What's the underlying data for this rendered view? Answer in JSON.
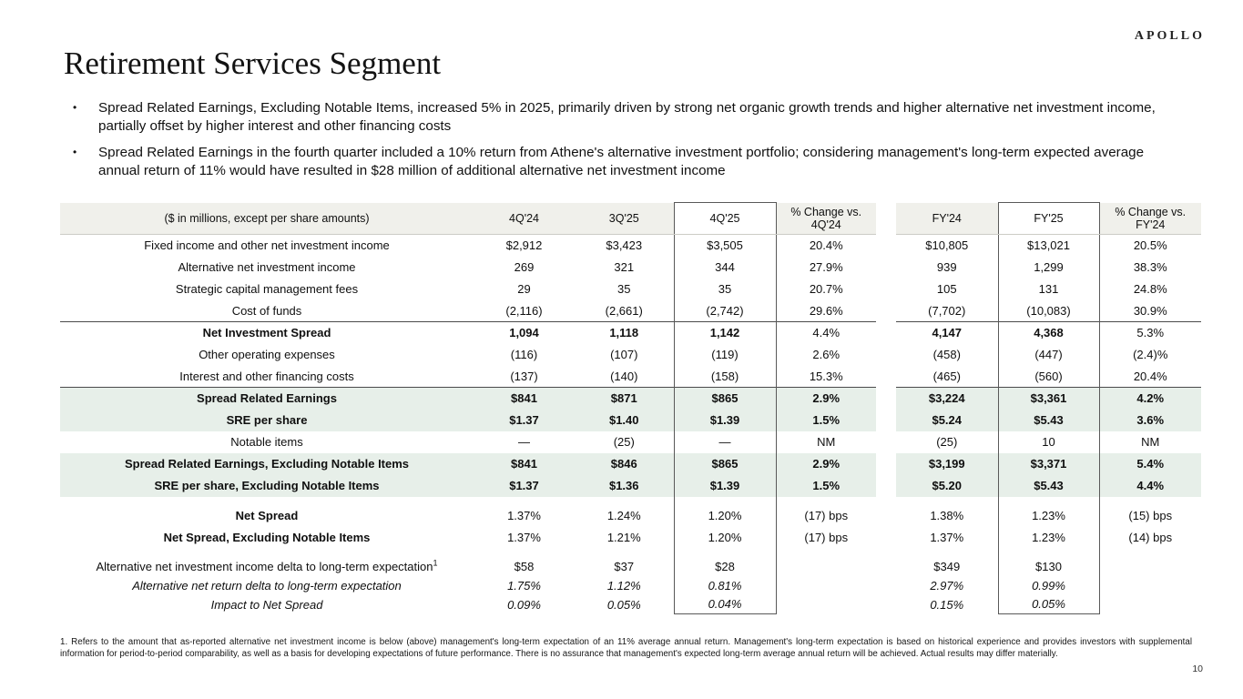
{
  "logo": "APOLLO",
  "title": "Retirement Services Segment",
  "bullets": [
    "Spread Related Earnings, Excluding Notable Items, increased 5% in 2025, primarily driven by strong net organic growth trends and higher alternative net investment income, partially offset by higher interest and other financing costs",
    "Spread Related Earnings in the fourth quarter included a 10% return from Athene's alternative investment portfolio; considering management's long-term expected average annual return of 11% would have resulted in $28 million of additional alternative net investment income"
  ],
  "table": {
    "label_header": "($ in millions, except per share amounts)",
    "columns": [
      "4Q'24",
      "3Q'25",
      "4Q'25",
      "% Change vs. 4Q'24",
      "FY'24",
      "FY'25",
      "% Change vs. FY'24"
    ],
    "rows": [
      {
        "label": "Fixed income and other net investment income",
        "values": [
          "$2,912",
          "$3,423",
          "$3,505",
          "20.4%",
          "$10,805",
          "$13,021",
          "20.5%"
        ]
      },
      {
        "label": "Alternative net investment income",
        "values": [
          "269",
          "321",
          "344",
          "27.9%",
          "939",
          "1,299",
          "38.3%"
        ]
      },
      {
        "label": "Strategic capital management fees",
        "values": [
          "29",
          "35",
          "35",
          "20.7%",
          "105",
          "131",
          "24.8%"
        ]
      },
      {
        "label": "Cost of funds",
        "values": [
          "(2,116)",
          "(2,661)",
          "(2,742)",
          "29.6%",
          "(7,702)",
          "(10,083)",
          "30.9%"
        ]
      },
      {
        "label": "Net Investment Spread",
        "bold_label": true,
        "value_bold": "num",
        "top_line": true,
        "values": [
          "1,094",
          "1,118",
          "1,142",
          "4.4%",
          "4,147",
          "4,368",
          "5.3%"
        ]
      },
      {
        "label": "Other operating expenses",
        "values": [
          "(116)",
          "(107)",
          "(119)",
          "2.6%",
          "(458)",
          "(447)",
          "(2.4)%"
        ]
      },
      {
        "label": "Interest and other financing costs",
        "values": [
          "(137)",
          "(140)",
          "(158)",
          "15.3%",
          "(465)",
          "(560)",
          "20.4%"
        ]
      },
      {
        "label": "Spread Related Earnings",
        "green": true,
        "bold_label": true,
        "value_bold": "all",
        "top_line": true,
        "values": [
          "$841",
          "$871",
          "$865",
          "2.9%",
          "$3,224",
          "$3,361",
          "4.2%"
        ]
      },
      {
        "label": "SRE per share",
        "green": true,
        "bold_label": true,
        "value_bold": "all",
        "values": [
          "$1.37",
          "$1.40",
          "$1.39",
          "1.5%",
          "$5.24",
          "$5.43",
          "3.6%"
        ]
      },
      {
        "label": "Notable items",
        "values": [
          "—",
          "(25)",
          "—",
          "NM",
          "(25)",
          "10",
          "NM"
        ]
      },
      {
        "label": "Spread Related Earnings, Excluding Notable Items",
        "green": true,
        "bold_label": true,
        "value_bold": "all",
        "values": [
          "$841",
          "$846",
          "$865",
          "2.9%",
          "$3,199",
          "$3,371",
          "5.4%"
        ]
      },
      {
        "label": "SRE per share, Excluding Notable Items",
        "green": true,
        "bold_label": true,
        "value_bold": "all",
        "values": [
          "$1.37",
          "$1.36",
          "$1.39",
          "1.5%",
          "$5.20",
          "$5.43",
          "4.4%"
        ]
      },
      {
        "label": "Net Spread",
        "bold_label": true,
        "gap_before": true,
        "values": [
          "1.37%",
          "1.24%",
          "1.20%",
          "(17) bps",
          "1.38%",
          "1.23%",
          "(15) bps"
        ]
      },
      {
        "label": "Net Spread, Excluding Notable Items",
        "bold_label": true,
        "values": [
          "1.37%",
          "1.21%",
          "1.20%",
          "(17) bps",
          "1.37%",
          "1.23%",
          "(14) bps"
        ]
      },
      {
        "label": "Alternative net investment income delta to long-term expectation",
        "sup": "1",
        "gap_before": true,
        "tight": true,
        "values": [
          "$58",
          "$37",
          "$28",
          "",
          "$349",
          "$130",
          ""
        ]
      },
      {
        "label": "Alternative net return delta to long-term expectation",
        "italic": true,
        "indent": true,
        "tight": true,
        "values": [
          "1.75%",
          "1.12%",
          "0.81%",
          "",
          "2.97%",
          "0.99%",
          ""
        ]
      },
      {
        "label": "Impact to Net Spread",
        "italic": true,
        "indent": true,
        "tight": true,
        "values": [
          "0.09%",
          "0.05%",
          "0.04%",
          "",
          "0.15%",
          "0.05%",
          ""
        ]
      }
    ]
  },
  "footnote": "1. Refers to the amount that as-reported alternative net investment income is below (above) management's long-term expectation of an 11% average annual return. Management's long-term expectation is based on historical experience and provides investors with supplemental information for period-to-period comparability, as well as a basis for developing expectations of future performance. There is no assurance that management's expected long-term average annual return will be achieved. Actual results may differ materially.",
  "page_number": "10",
  "colors": {
    "header_bg": "#f0f0eb",
    "highlight_bg": "#e7efe9",
    "box_border": "#595959"
  }
}
